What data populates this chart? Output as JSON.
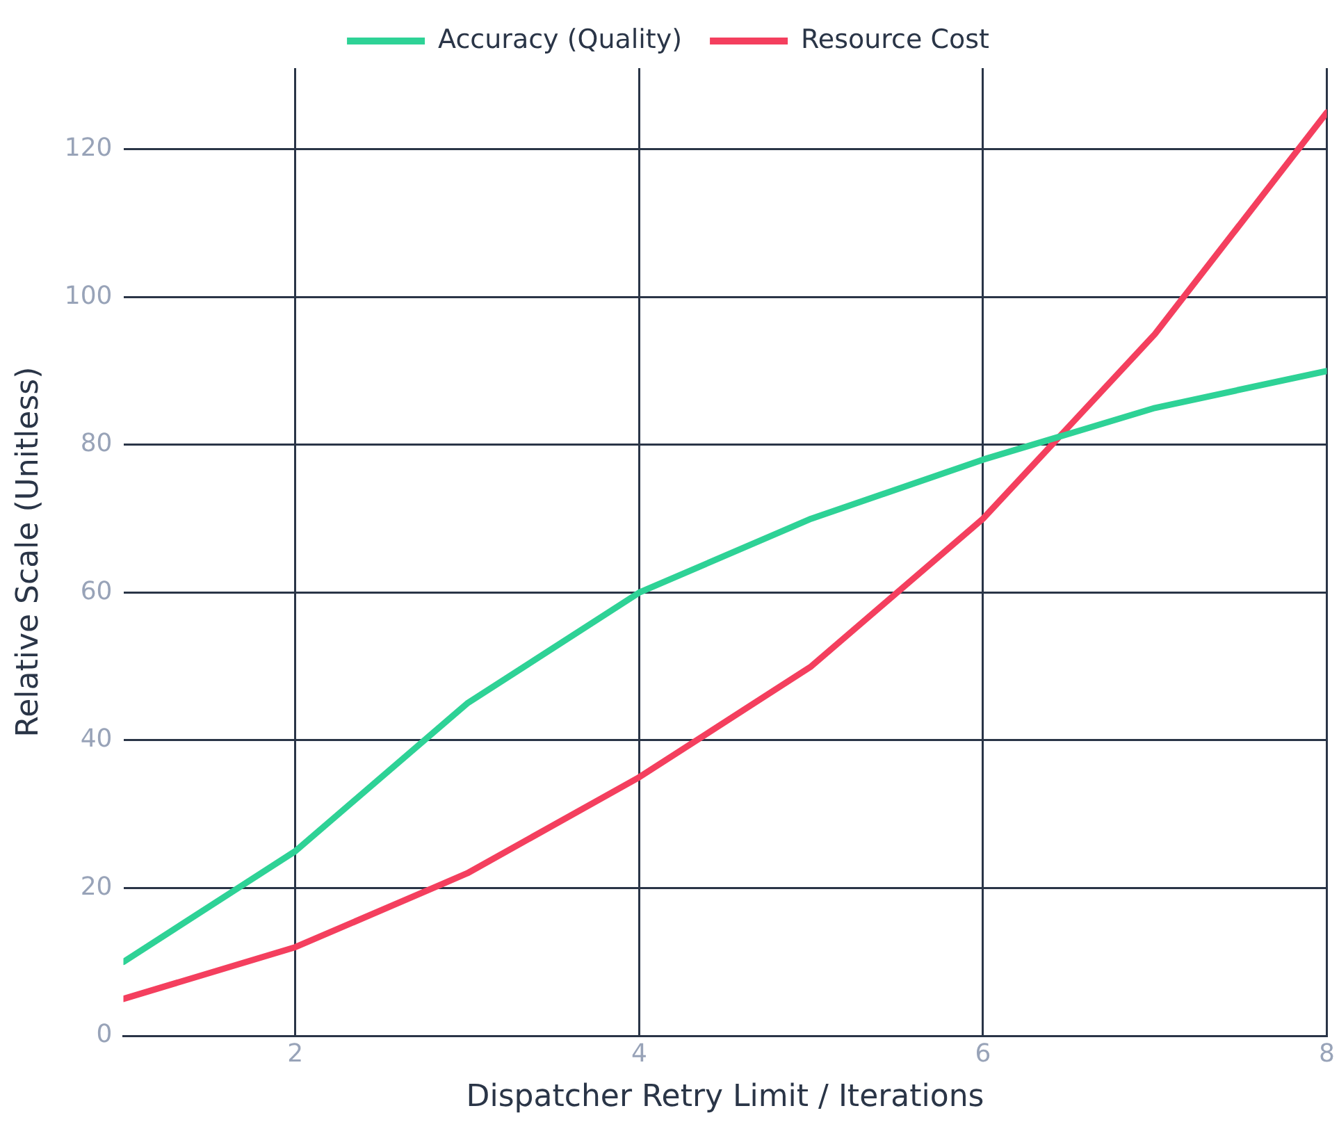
{
  "chart_data": {
    "type": "line",
    "xlabel": "Dispatcher Retry Limit / Iterations",
    "ylabel": "Relative Scale (Unitless)",
    "x": [
      1,
      2,
      3,
      4,
      5,
      6,
      7,
      8
    ],
    "series": [
      {
        "name": "Accuracy (Quality)",
        "color": "#2ed296",
        "values": [
          10,
          25,
          45,
          60,
          70,
          78,
          85,
          90
        ]
      },
      {
        "name": "Resource Cost",
        "color": "#f43f5e",
        "values": [
          5,
          12,
          22,
          35,
          50,
          70,
          95,
          125
        ]
      }
    ],
    "xlim": [
      1,
      8
    ],
    "xticks": [
      2,
      4,
      6,
      8
    ],
    "ylim": [
      0,
      131
    ],
    "yticks": [
      0,
      20,
      40,
      60,
      80,
      100,
      120
    ],
    "grid": true,
    "legend": "top",
    "marker": "none",
    "line_style": "solid"
  }
}
